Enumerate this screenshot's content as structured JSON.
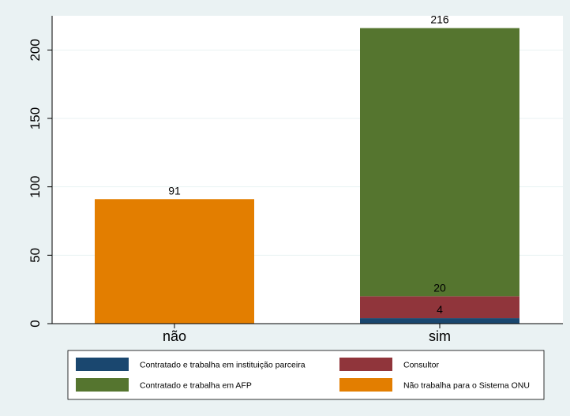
{
  "chart_data": {
    "type": "bar",
    "stacked": true,
    "title": "",
    "xlabel": "",
    "ylabel": "",
    "ylim": [
      0,
      225
    ],
    "yticks": [
      0,
      50,
      100,
      150,
      200
    ],
    "grid": "horizontal",
    "legend_position": "bottom",
    "categories": [
      "não",
      "sim"
    ],
    "series": [
      {
        "name": "Contratado e trabalha em instituição parceira",
        "color": "#1a476f",
        "values": [
          0,
          4
        ]
      },
      {
        "name": "Consultor",
        "color": "#90353b",
        "values": [
          0,
          16
        ]
      },
      {
        "name": "Contratado e trabalha em AFP",
        "color": "#55752f",
        "values": [
          0,
          196
        ]
      },
      {
        "name": "Não trabalha para o Sistema ONU",
        "color": "#e37e00",
        "values": [
          91,
          0
        ]
      }
    ],
    "data_labels": [
      {
        "category": "não",
        "value": 91,
        "text": "91"
      },
      {
        "category": "sim",
        "value": 216,
        "text": "216"
      },
      {
        "category": "sim",
        "value": 20,
        "text": "20"
      },
      {
        "category": "sim",
        "value": 4,
        "text": "4"
      }
    ],
    "legend": [
      "Contratado e trabalha em instituição parceira",
      "Consultor",
      "Contratado e trabalha em AFP",
      "Não trabalha para o Sistema ONU"
    ],
    "colors": {
      "outer_background": "#eaf2f3",
      "plot_background": "#ffffff",
      "grid": "#eaf2f3",
      "axis": "#000000"
    }
  }
}
